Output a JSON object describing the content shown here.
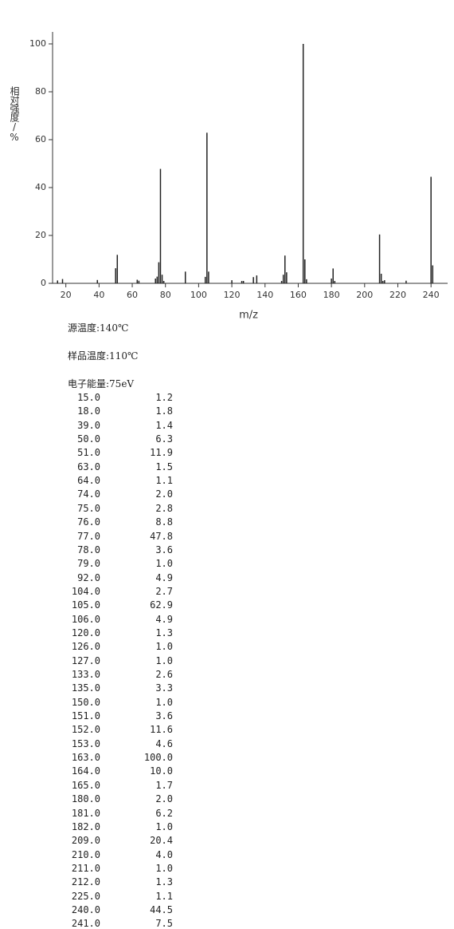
{
  "chart_data": {
    "type": "bar",
    "x_label": "m/z",
    "y_label": "相对强度/%",
    "x": [
      15,
      18,
      39,
      50,
      51,
      63,
      64,
      74,
      75,
      76,
      77,
      78,
      79,
      92,
      104,
      105,
      106,
      120,
      126,
      127,
      133,
      135,
      150,
      151,
      152,
      153,
      163,
      164,
      165,
      180,
      181,
      182,
      209,
      210,
      211,
      212,
      225,
      240,
      241
    ],
    "x_labels": [
      "15.0",
      "18.0",
      "39.0",
      "50.0",
      "51.0",
      "63.0",
      "64.0",
      "74.0",
      "75.0",
      "76.0",
      "77.0",
      "78.0",
      "79.0",
      "92.0",
      "104.0",
      "105.0",
      "106.0",
      "120.0",
      "126.0",
      "127.0",
      "133.0",
      "135.0",
      "150.0",
      "151.0",
      "152.0",
      "153.0",
      "163.0",
      "164.0",
      "165.0",
      "180.0",
      "181.0",
      "182.0",
      "209.0",
      "210.0",
      "211.0",
      "212.0",
      "225.0",
      "240.0",
      "241.0"
    ],
    "values": [
      1.2,
      1.8,
      1.4,
      6.3,
      11.9,
      1.5,
      1.1,
      2.0,
      2.8,
      8.8,
      47.8,
      3.6,
      1.0,
      4.9,
      2.7,
      62.9,
      4.9,
      1.3,
      1.0,
      1.0,
      2.6,
      3.3,
      1.0,
      3.6,
      11.6,
      4.6,
      100.0,
      10.0,
      1.7,
      2.0,
      6.2,
      1.0,
      20.4,
      4.0,
      1.0,
      1.3,
      1.1,
      44.5,
      7.5
    ],
    "value_labels": [
      "1.2",
      "1.8",
      "1.4",
      "6.3",
      "11.9",
      "1.5",
      "1.1",
      "2.0",
      "2.8",
      "8.8",
      "47.8",
      "3.6",
      "1.0",
      "4.9",
      "2.7",
      "62.9",
      "4.9",
      "1.3",
      "1.0",
      "1.0",
      "2.6",
      "3.3",
      "1.0",
      "3.6",
      "11.6",
      "4.6",
      "100.0",
      "10.0",
      "1.7",
      "2.0",
      "6.2",
      "1.0",
      "20.4",
      "4.0",
      "1.0",
      "1.3",
      "1.1",
      "44.5",
      "7.5"
    ],
    "color": "#222222",
    "xlim": [
      12,
      250
    ],
    "xticks": [
      20,
      40,
      60,
      80,
      100,
      120,
      140,
      160,
      180,
      200,
      220,
      240
    ],
    "ylim": [
      0,
      105
    ],
    "yticks": [
      0,
      20,
      40,
      60,
      80,
      100
    ],
    "grid": false
  },
  "conditions": [
    "源温度:140℃",
    "样品温度:110℃",
    "电子能量:75eV"
  ]
}
